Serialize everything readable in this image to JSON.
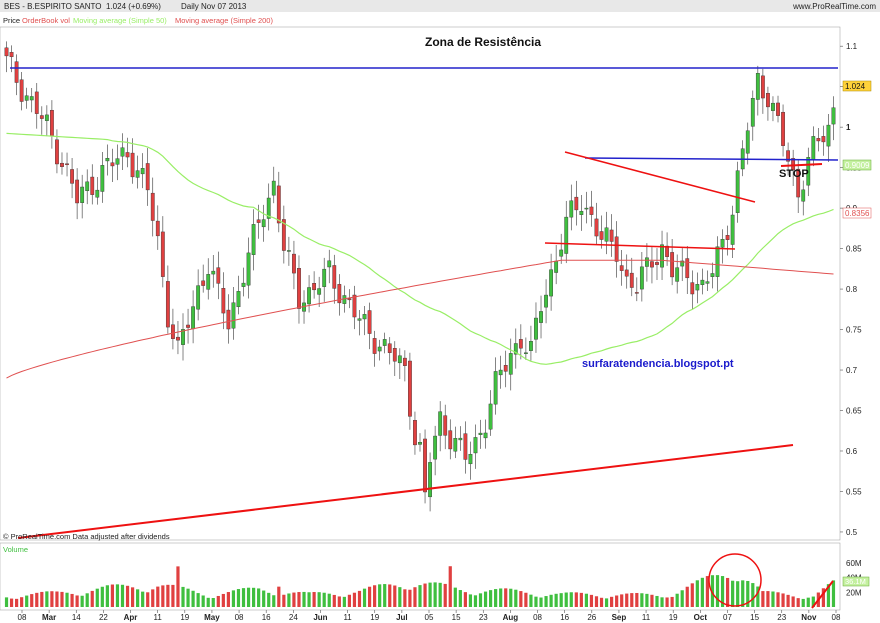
{
  "header": {
    "instrument": "BES - B.ESPIRITO SANTO",
    "last_quote": "1.024 (+0.69%)",
    "period": "Daily  Nov 07 2013",
    "site": "www.ProRealTime.com"
  },
  "legend": {
    "price": "Price",
    "orderbook": "OrderBook vol",
    "ma50": "Moving average (Simple 50)",
    "ma200": "Moving average (Simple 200)"
  },
  "footer": {
    "source": "© ProRealTime.com  Data adjusted after dividends",
    "volume_title": "Volume"
  },
  "annotations": {
    "resistance": "Zona de Resistência",
    "blog": "surfaratendencia.blogspot.pt",
    "stop": "STOP"
  },
  "price_labels": {
    "last": "1.024",
    "ma50": "0.9009",
    "ma200": "0.8356"
  },
  "volume_labels": [
    "60M",
    "40M",
    "20M"
  ],
  "volume_last_label": "36.1M",
  "colors": {
    "up": "#3fbf3f",
    "down": "#e04040",
    "ma50": "#99ee66",
    "ma200": "#e05050",
    "trend_blue": "#2222cc",
    "trend_red": "#ee1111",
    "blog": "#1a1acc"
  },
  "chart_data": {
    "type": "candlestick",
    "title": "BES - B.ESPIRITO SANTO",
    "y_ticks": [
      "1.1",
      "1.05",
      "1",
      "0.95",
      "0.9",
      "0.85",
      "0.8",
      "0.75",
      "0.7",
      "0.65",
      "0.6",
      "0.55",
      "0.5"
    ],
    "ylim": [
      0.495,
      1.12
    ],
    "x_ticks": [
      "08",
      "Mar",
      "14",
      "22",
      "Apr",
      "11",
      "19",
      "May",
      "08",
      "16",
      "24",
      "Jun",
      "11",
      "19",
      "Jul",
      "05",
      "15",
      "23",
      "Aug",
      "08",
      "16",
      "26",
      "Sep",
      "11",
      "19",
      "Oct",
      "07",
      "15",
      "23",
      "Nov",
      "08"
    ],
    "close_path": [
      [
        0,
        1.08
      ],
      [
        4,
        1.04
      ],
      [
        8,
        1.0
      ],
      [
        11,
        0.96
      ],
      [
        14,
        0.91
      ],
      [
        19,
        0.945
      ],
      [
        24,
        0.97
      ],
      [
        28,
        0.92
      ],
      [
        30,
        0.86
      ],
      [
        32,
        0.77
      ],
      [
        34,
        0.72
      ],
      [
        36,
        0.76
      ],
      [
        38,
        0.8
      ],
      [
        40,
        0.83
      ],
      [
        42,
        0.79
      ],
      [
        44,
        0.76
      ],
      [
        46,
        0.8
      ],
      [
        49,
        0.86
      ],
      [
        51,
        0.9
      ],
      [
        53,
        0.93
      ],
      [
        55,
        0.85
      ],
      [
        58,
        0.79
      ],
      [
        61,
        0.8
      ],
      [
        64,
        0.82
      ],
      [
        67,
        0.79
      ],
      [
        70,
        0.76
      ],
      [
        73,
        0.74
      ],
      [
        76,
        0.72
      ],
      [
        79,
        0.7
      ],
      [
        81,
        0.62
      ],
      [
        82,
        0.6
      ],
      [
        83,
        0.54
      ],
      [
        84,
        0.59
      ],
      [
        86,
        0.64
      ],
      [
        88,
        0.62
      ],
      [
        91,
        0.59
      ],
      [
        93,
        0.61
      ],
      [
        95,
        0.64
      ],
      [
        97,
        0.68
      ],
      [
        100,
        0.72
      ],
      [
        102,
        0.74
      ],
      [
        104,
        0.72
      ],
      [
        106,
        0.78
      ],
      [
        108,
        0.82
      ],
      [
        111,
        0.88
      ],
      [
        114,
        0.91
      ],
      [
        116,
        0.89
      ],
      [
        118,
        0.86
      ],
      [
        121,
        0.85
      ],
      [
        123,
        0.81
      ],
      [
        125,
        0.8
      ],
      [
        128,
        0.84
      ],
      [
        130,
        0.85
      ],
      [
        132,
        0.82
      ],
      [
        135,
        0.82
      ],
      [
        138,
        0.8
      ],
      [
        140,
        0.82
      ],
      [
        142,
        0.86
      ],
      [
        144,
        0.9
      ],
      [
        147,
        1.0
      ],
      [
        149,
        1.06
      ],
      [
        151,
        1.04
      ],
      [
        153,
        1.0
      ],
      [
        155,
        0.96
      ],
      [
        157,
        0.92
      ],
      [
        159,
        0.96
      ],
      [
        161,
        0.98
      ],
      [
        163,
        1.0
      ],
      [
        164,
        1.024
      ]
    ],
    "volume_profile": [
      [
        0,
        18
      ],
      [
        10,
        22
      ],
      [
        20,
        30
      ],
      [
        30,
        35
      ],
      [
        40,
        20
      ],
      [
        50,
        28
      ],
      [
        60,
        20
      ],
      [
        70,
        25
      ],
      [
        80,
        40
      ],
      [
        90,
        28
      ],
      [
        100,
        25
      ],
      [
        110,
        20
      ],
      [
        120,
        20
      ],
      [
        130,
        18
      ],
      [
        140,
        45
      ],
      [
        145,
        60
      ],
      [
        150,
        22
      ],
      [
        160,
        18
      ],
      [
        164,
        36.1
      ]
    ],
    "volume_ylim": [
      0,
      80
    ],
    "ma50_series": "Moving average (Simple 50)",
    "ma200_series": "Moving average (Simple 200)",
    "grid": false
  }
}
